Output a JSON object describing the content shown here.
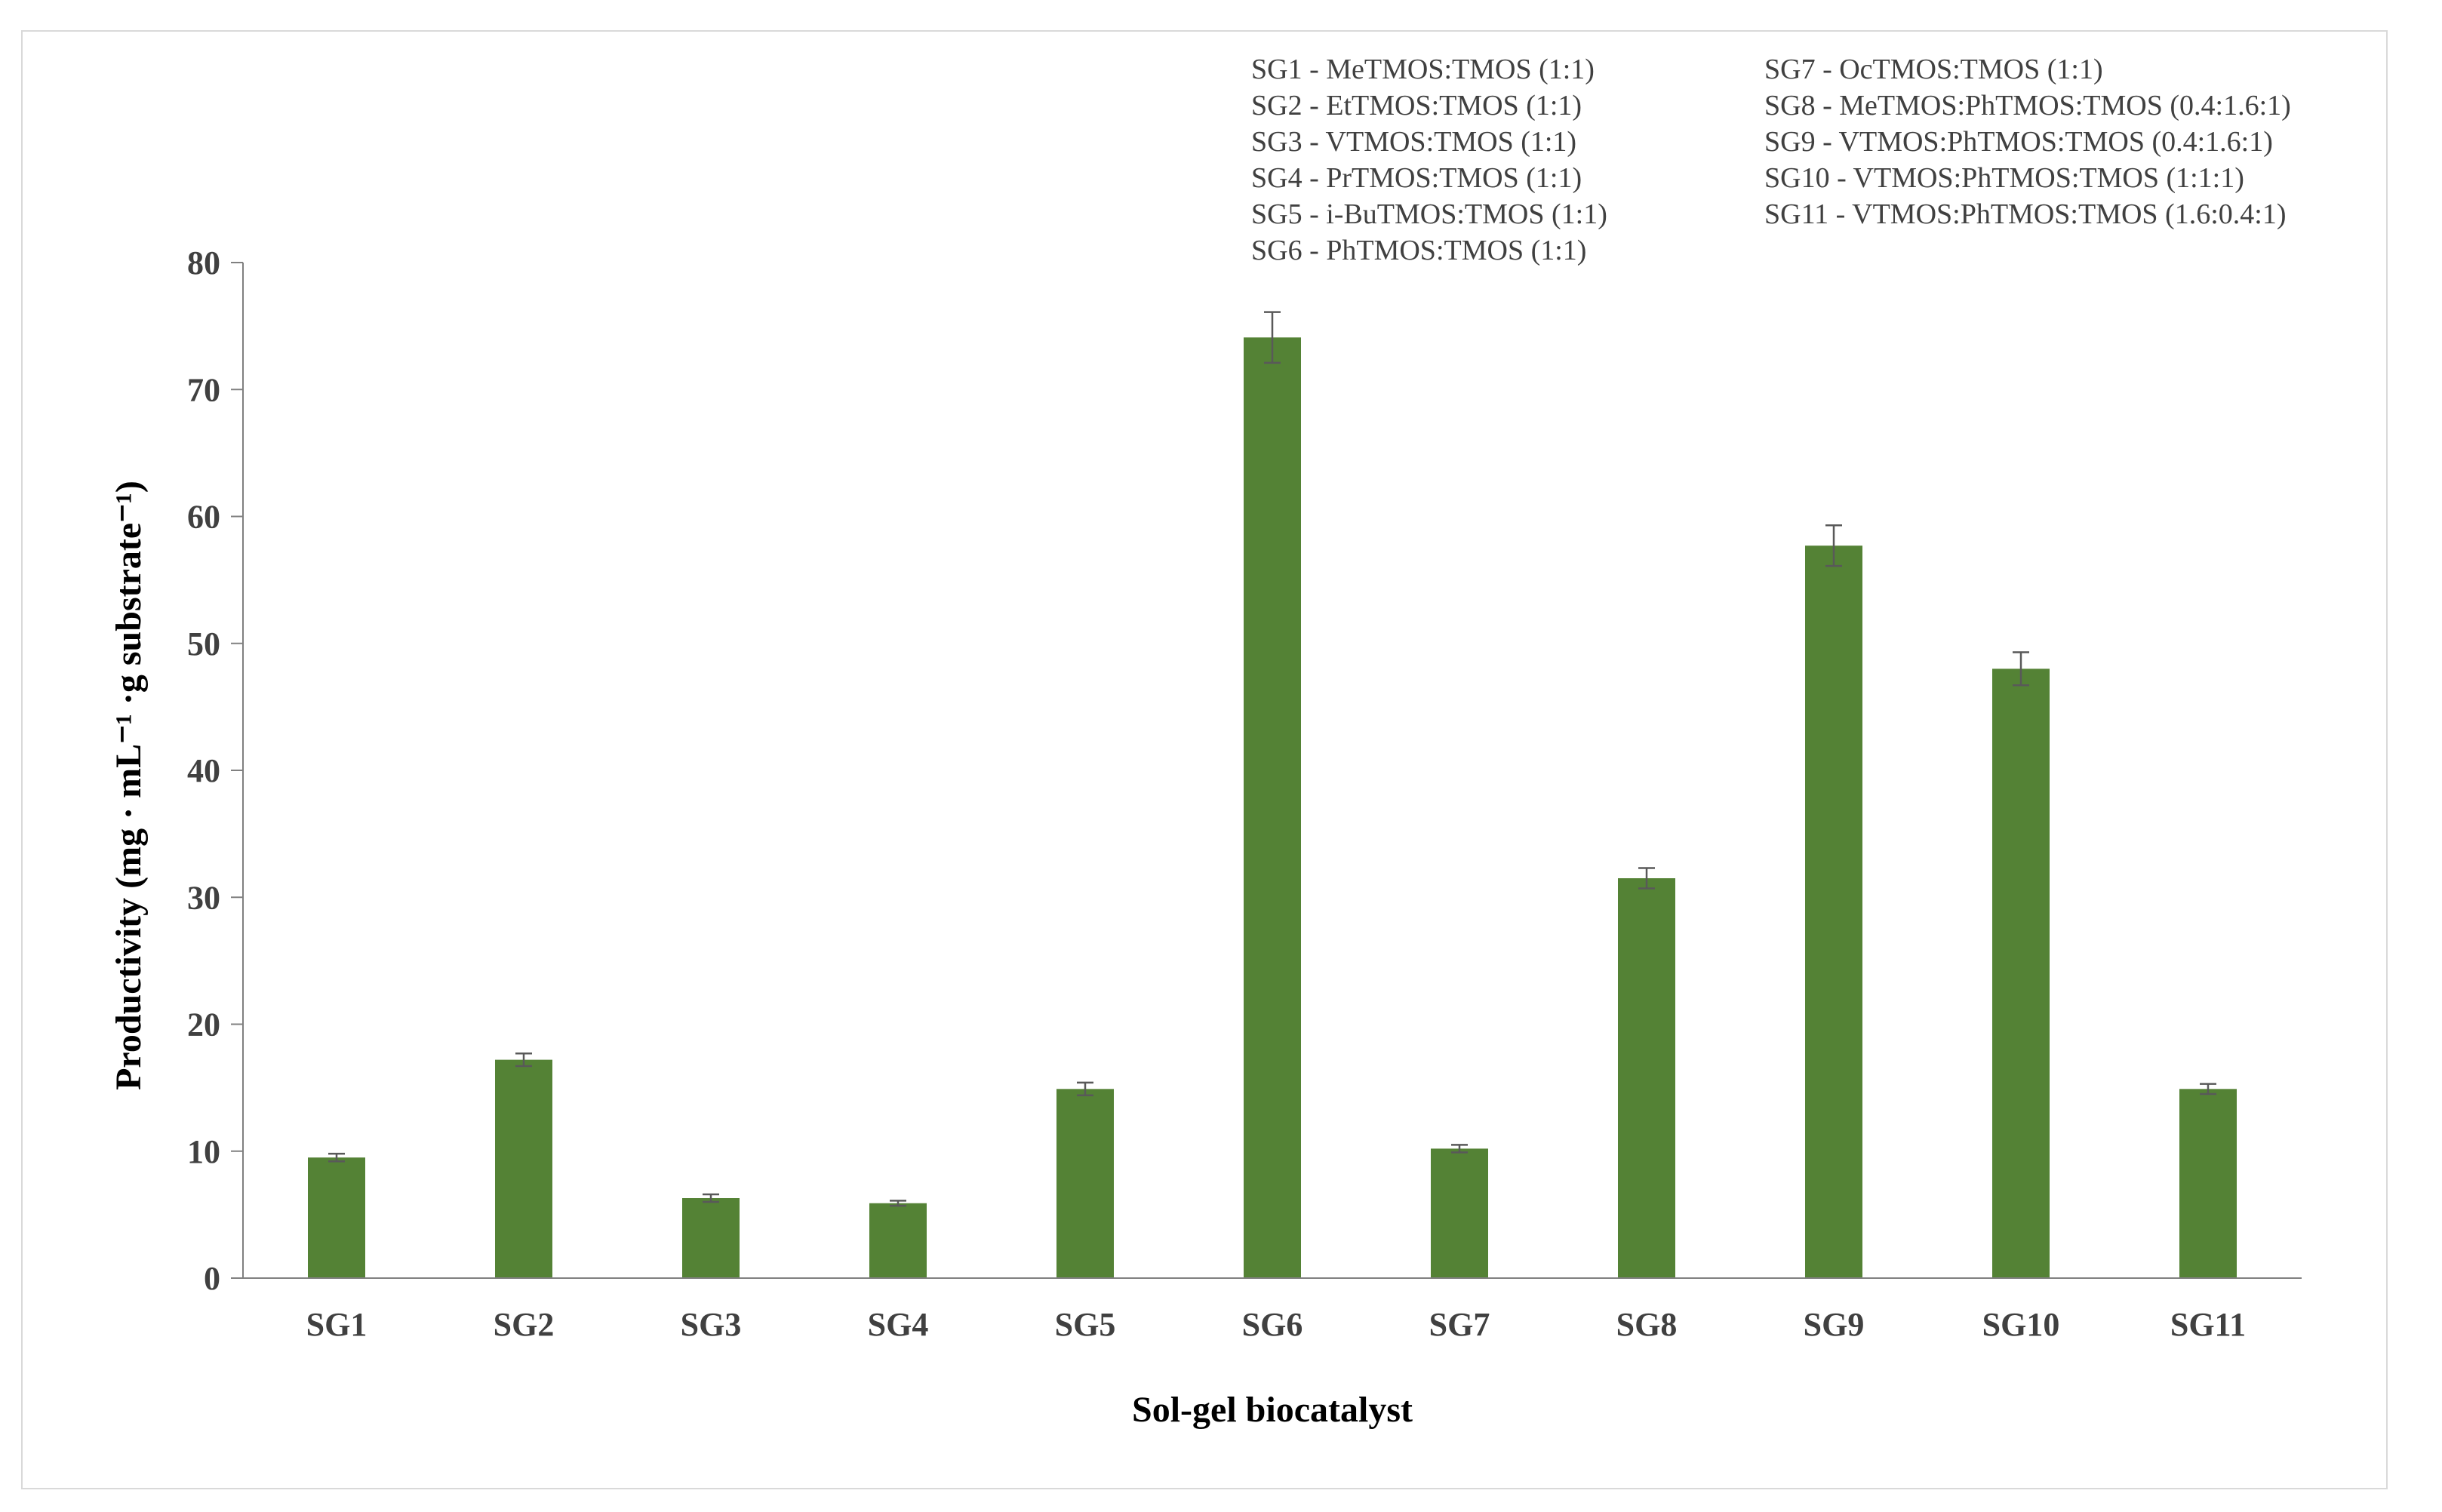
{
  "chart_data": {
    "type": "bar",
    "categories": [
      "SG1",
      "SG2",
      "SG3",
      "SG4",
      "SG5",
      "SG6",
      "SG7",
      "SG8",
      "SG9",
      "SG10",
      "SG11"
    ],
    "values": [
      9.5,
      17.2,
      6.3,
      5.9,
      14.9,
      74.1,
      10.2,
      31.5,
      57.7,
      48.0,
      14.9
    ],
    "errors": [
      0.3,
      0.5,
      0.3,
      0.2,
      0.5,
      2.0,
      0.3,
      0.8,
      1.6,
      1.3,
      0.4
    ],
    "title": "",
    "xlabel": "Sol-gel biocatalyst",
    "ylabel": "Productivity (mg · mL⁻¹ ·g substrate⁻¹)",
    "ylim": [
      0,
      80
    ],
    "yticks": [
      "0",
      "10",
      "20",
      "30",
      "40",
      "50",
      "60",
      "70",
      "80"
    ],
    "grid": false,
    "bar_color": "#548235",
    "error_bar_color": "#595959",
    "axis_color": "#808080",
    "annotations": [
      "SG1  - MeTMOS:TMOS (1:1)",
      "SG2  - EtTMOS:TMOS (1:1)",
      "SG3  - VTMOS:TMOS (1:1)",
      "SG4  - PrTMOS:TMOS (1:1)",
      "SG5  - i-BuTMOS:TMOS (1:1)",
      "SG6  - PhTMOS:TMOS (1:1)",
      "SG7 - OcTMOS:TMOS (1:1)",
      "SG8 - MeTMOS:PhTMOS:TMOS (0.4:1.6:1)",
      "SG9 - VTMOS:PhTMOS:TMOS (0.4:1.6:1)",
      "SG10 - VTMOS:PhTMOS:TMOS (1:1:1)",
      "SG11 - VTMOS:PhTMOS:TMOS (1.6:0.4:1)"
    ]
  }
}
